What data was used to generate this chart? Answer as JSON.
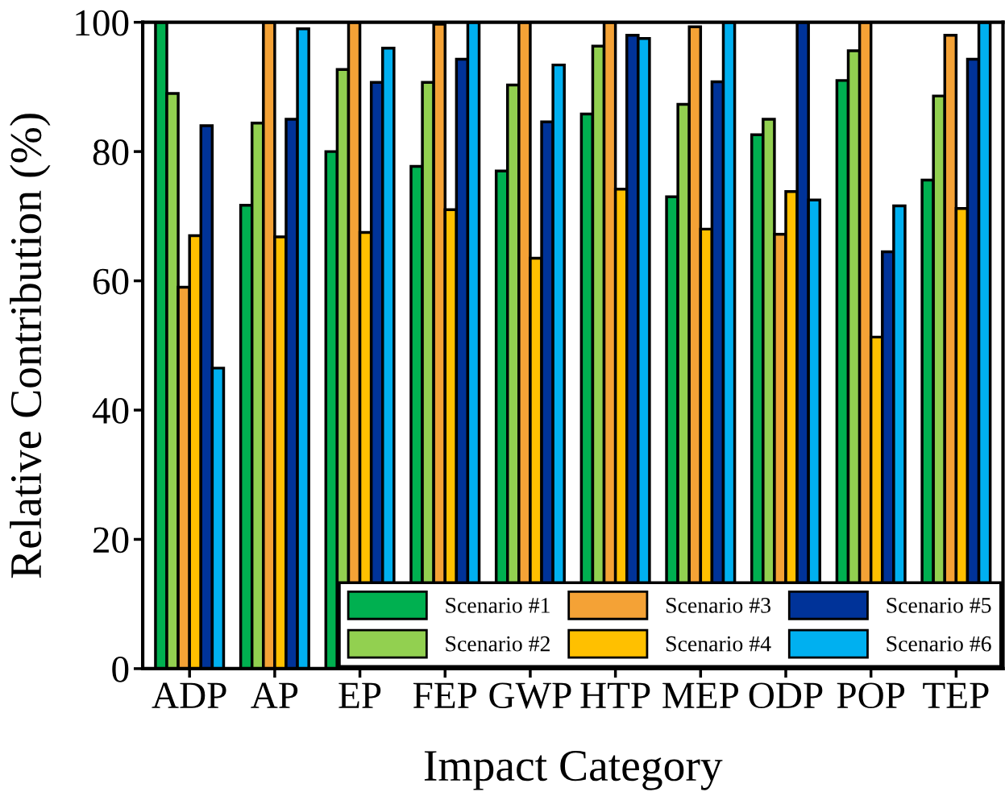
{
  "chart_data": {
    "type": "bar",
    "xlabel": "Impact Category",
    "ylabel": "Relative Contribution (%)",
    "categories": [
      "ADP",
      "AP",
      "EP",
      "FEP",
      "GWP",
      "HTP",
      "MEP",
      "ODP",
      "POP",
      "TEP"
    ],
    "series": [
      {
        "name": "Scenario #1",
        "color": "#00b050",
        "values": [
          100,
          71.7,
          80,
          77.7,
          77,
          85.8,
          73,
          82.6,
          91,
          75.6
        ]
      },
      {
        "name": "Scenario #2",
        "color": "#92d050",
        "values": [
          89,
          84.4,
          92.7,
          90.7,
          90.3,
          96.3,
          87.3,
          85,
          95.6,
          88.6
        ]
      },
      {
        "name": "Scenario #3",
        "color": "#f4a236",
        "values": [
          59,
          100,
          100,
          99.7,
          100,
          100,
          99.3,
          67.2,
          100,
          98
        ]
      },
      {
        "name": "Scenario #4",
        "color": "#ffc000",
        "values": [
          67,
          66.8,
          67.5,
          71,
          63.5,
          74.2,
          68,
          73.8,
          51.3,
          71.2
        ]
      },
      {
        "name": "Scenario #5",
        "color": "#003399",
        "values": [
          84,
          85,
          90.7,
          94.3,
          84.6,
          98,
          90.8,
          100,
          64.5,
          94.3
        ]
      },
      {
        "name": "Scenario #6",
        "color": "#00b0f0",
        "values": [
          46.5,
          99,
          96,
          100,
          93.4,
          97.5,
          100,
          72.5,
          71.6,
          100
        ]
      }
    ],
    "ylim": [
      0,
      100
    ],
    "yticks": [
      0,
      20,
      40,
      60,
      80,
      100
    ],
    "grid": false,
    "legend": "bottom right"
  }
}
